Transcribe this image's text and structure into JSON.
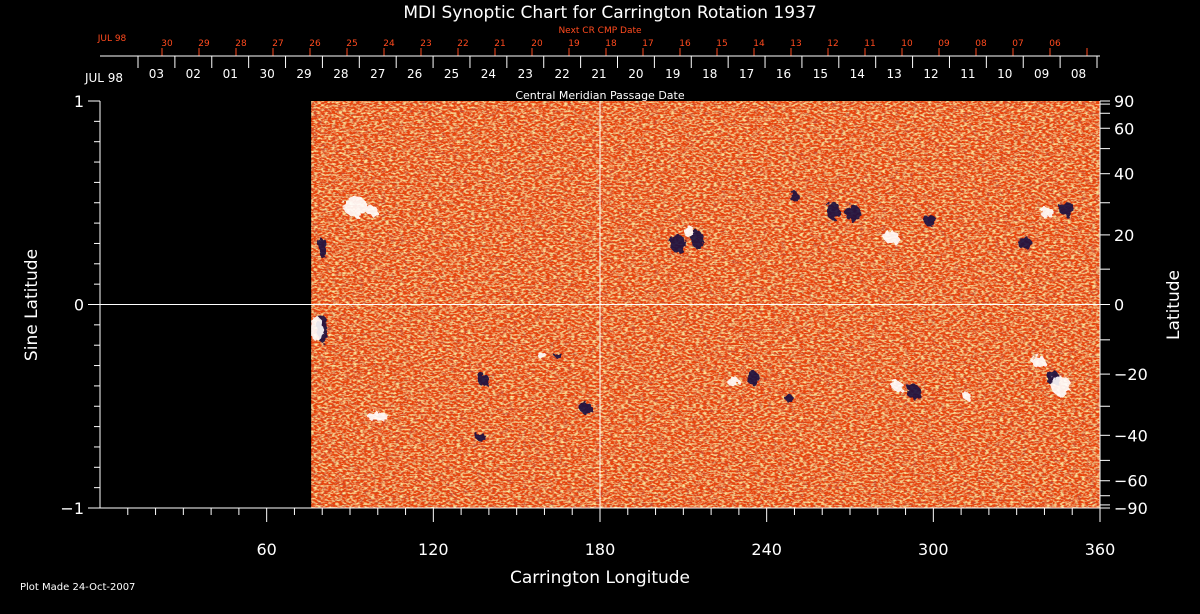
{
  "chart_data": {
    "type": "heatmap",
    "title": "MDI Synoptic Chart for Carrington Rotation 1937",
    "xlabel": "Carrington Longitude",
    "ylabel_left": "Sine Latitude",
    "ylabel_right": "Latitude",
    "xlim": [
      0,
      360
    ],
    "ylim": [
      -1,
      1
    ],
    "x_ticks": [
      60,
      120,
      180,
      240,
      300,
      360
    ],
    "y_ticks_left": [
      "1",
      "0",
      "−1"
    ],
    "y_ticks_right": [
      {
        "lat": 90,
        "label": "90"
      },
      {
        "lat": 60,
        "label": "60"
      },
      {
        "lat": 40,
        "label": "40"
      },
      {
        "lat": 20,
        "label": "20"
      },
      {
        "lat": 0,
        "label": "0"
      },
      {
        "lat": -20,
        "label": "−20"
      },
      {
        "lat": -40,
        "label": "−40"
      },
      {
        "lat": -60,
        "label": "−60"
      },
      {
        "lat": -90,
        "label": "−90"
      }
    ],
    "no_data_lon_range": [
      0,
      76
    ],
    "grid_lines": {
      "longitude": 180,
      "sine_latitude": 0
    },
    "top_axis": {
      "label": "Central Meridian Passage Date",
      "month_label": "JUL 98",
      "dates": [
        "03",
        "02",
        "01",
        "30",
        "29",
        "28",
        "27",
        "26",
        "25",
        "24",
        "23",
        "22",
        "21",
        "20",
        "19",
        "18",
        "17",
        "16",
        "15",
        "14",
        "13",
        "12",
        "11",
        "10",
        "09",
        "08"
      ]
    },
    "next_cr_axis": {
      "label": "Next CR CMP Date",
      "month_label": "JUL 98",
      "dates": [
        "30",
        "29",
        "28",
        "27",
        "26",
        "25",
        "24",
        "23",
        "22",
        "21",
        "20",
        "19",
        "18",
        "17",
        "16",
        "15",
        "14",
        "13",
        "12",
        "11",
        "10",
        "09",
        "08",
        "07",
        "06"
      ]
    },
    "colors": {
      "background": "#000000",
      "map_base": "#e8440c",
      "positive": "#ffffff",
      "negative": "#1a0a40",
      "next_cr_axis": "#ff4a1e",
      "axes": "#ffffff"
    },
    "footer": "Plot Made 24-Oct-2007"
  }
}
